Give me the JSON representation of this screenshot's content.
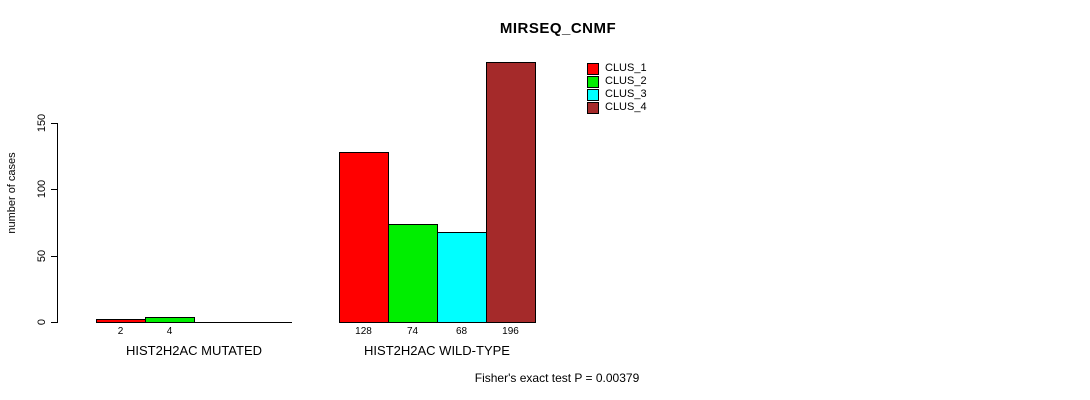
{
  "chart_data": {
    "type": "bar",
    "title": "MIRSEQ_CNMF",
    "xlabel": "",
    "ylabel": "number of cases",
    "ylim": [
      0,
      196
    ],
    "yticks": [
      0,
      50,
      100,
      150
    ],
    "grid": false,
    "legend_position": "top-right-inside",
    "categories": [
      "HIST2H2AC MUTATED",
      "HIST2H2AC WILD-TYPE"
    ],
    "series": [
      {
        "name": "CLUS_1",
        "color": "#FF0000",
        "values": [
          2,
          128
        ]
      },
      {
        "name": "CLUS_2",
        "color": "#00EE00",
        "values": [
          4,
          74
        ]
      },
      {
        "name": "CLUS_3",
        "color": "#00FFFF",
        "values": [
          0,
          68
        ]
      },
      {
        "name": "CLUS_4",
        "color": "#A52A2A",
        "values": [
          0,
          196
        ]
      }
    ],
    "bar_value_labels": {
      "HIST2H2AC MUTATED": [
        "2",
        "4",
        "",
        ""
      ],
      "HIST2H2AC WILD-TYPE": [
        "128",
        "74",
        "68",
        "196"
      ]
    },
    "footnote": "Fisher's exact test P = 0.00379",
    "colors": {
      "axis": "#000000",
      "text": "#000000",
      "background": "#FFFFFF"
    }
  }
}
